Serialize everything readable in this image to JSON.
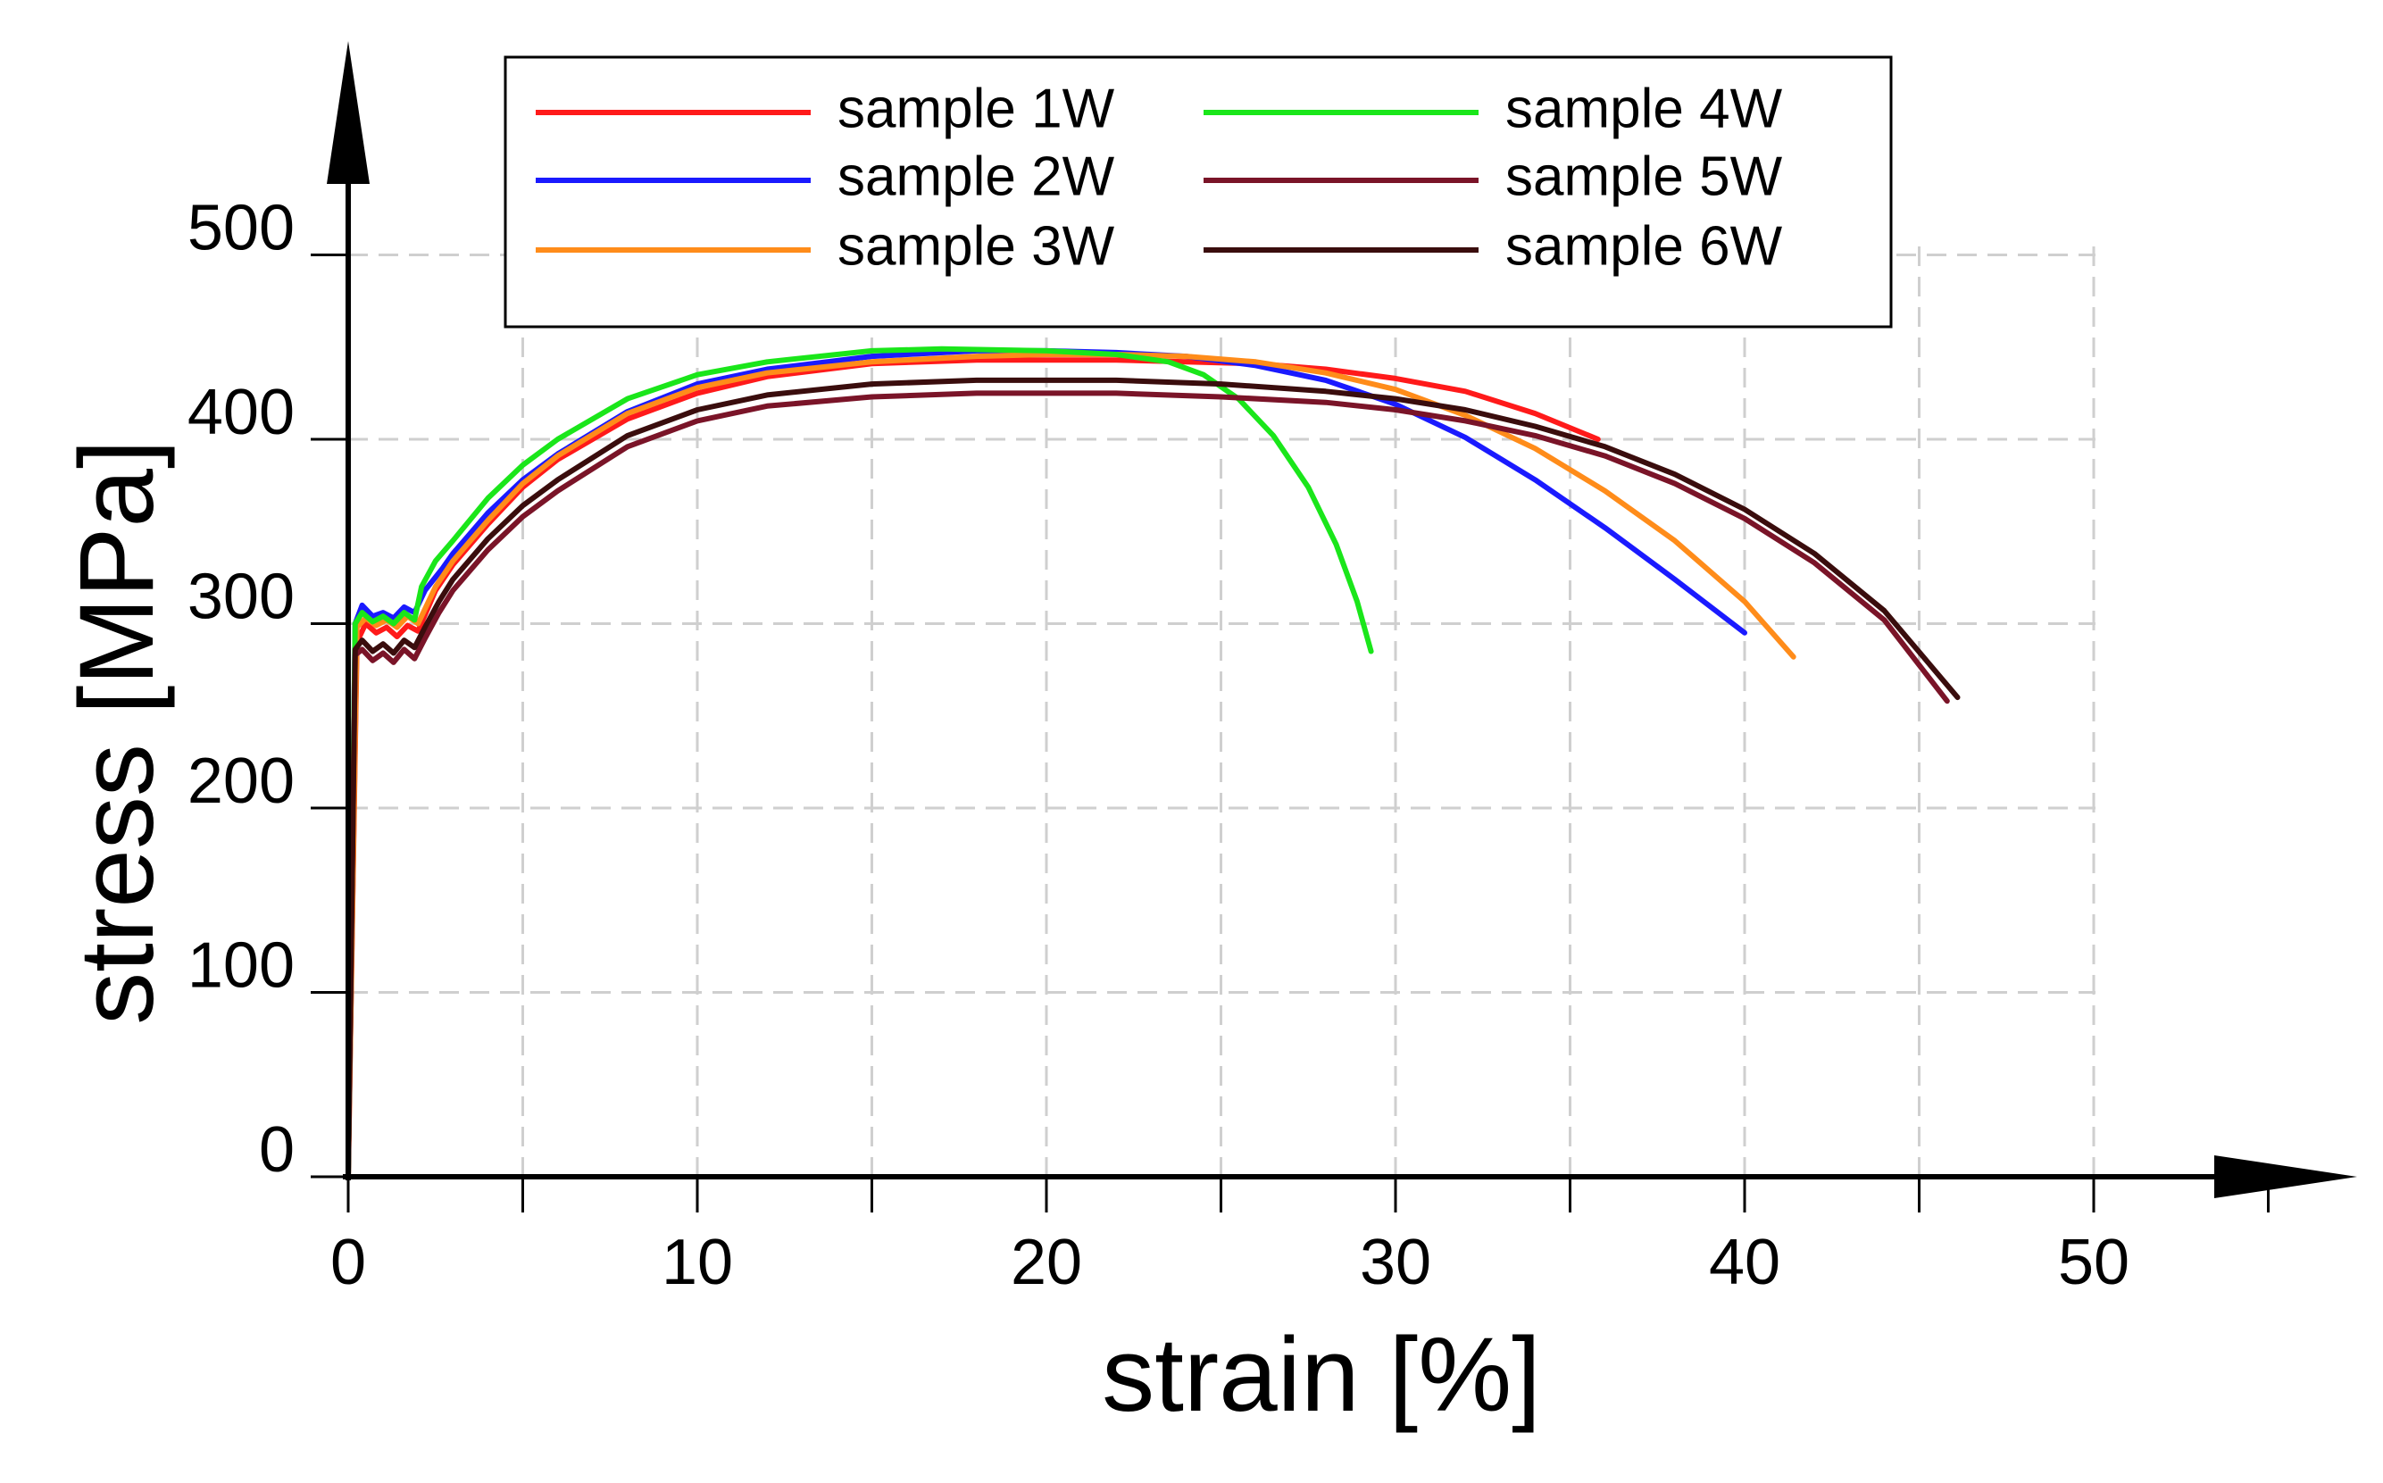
{
  "chart_data": {
    "type": "line",
    "title": "",
    "xlabel": "strain [%]",
    "ylabel": "stress [MPa]",
    "xlim": [
      0,
      55
    ],
    "ylim": [
      0,
      560
    ],
    "xticks": [
      0,
      10,
      20,
      30,
      40,
      50
    ],
    "yticks": [
      0,
      100,
      200,
      300,
      400,
      500
    ],
    "grid": true,
    "legend_position": "top-center",
    "series": [
      {
        "name": "sample 1W",
        "color": "#ff1a1a",
        "x": [
          0,
          0.25,
          0.5,
          0.8,
          1.1,
          1.4,
          1.7,
          2.0,
          2.5,
          3,
          4,
          5,
          6,
          8,
          10,
          12,
          15,
          18,
          20,
          22,
          24,
          26,
          28,
          30,
          32,
          34,
          35.8
        ],
        "y": [
          0,
          290,
          300,
          295,
          298,
          293,
          299,
          296,
          318,
          332,
          354,
          374,
          389,
          411,
          425,
          434,
          441,
          443,
          443,
          443,
          442,
          441,
          438,
          433,
          426,
          414,
          400
        ]
      },
      {
        "name": "sample 2W",
        "color": "#1a1aff",
        "x": [
          0,
          0.2,
          0.4,
          0.7,
          1.0,
          1.3,
          1.6,
          1.9,
          2.2,
          2.7,
          3,
          4,
          5,
          6,
          8,
          10,
          12,
          15,
          18,
          20,
          22,
          24,
          26,
          28,
          30,
          32,
          34,
          36,
          38,
          40
        ],
        "y": [
          0,
          300,
          310,
          304,
          306,
          303,
          309,
          306,
          318,
          330,
          338,
          360,
          378,
          392,
          415,
          430,
          438,
          445,
          448,
          448,
          447,
          445,
          440,
          432,
          419,
          401,
          378,
          352,
          324,
          295
        ]
      },
      {
        "name": "sample 3W",
        "color": "#ff8c1a",
        "x": [
          0,
          0.25,
          0.5,
          0.8,
          1.1,
          1.4,
          1.7,
          2.0,
          2.5,
          3,
          4,
          5,
          6,
          8,
          10,
          12,
          15,
          18,
          20,
          22,
          24,
          26,
          28,
          30,
          32,
          34,
          36,
          38,
          40,
          41.4
        ],
        "y": [
          0,
          298,
          303,
          299,
          302,
          298,
          304,
          300,
          320,
          334,
          356,
          376,
          391,
          414,
          428,
          436,
          442,
          445,
          446,
          446,
          445,
          442,
          436,
          427,
          413,
          395,
          372,
          345,
          312,
          282
        ]
      },
      {
        "name": "sample 4W",
        "color": "#1ae61a",
        "x": [
          0,
          0.2,
          0.4,
          0.7,
          1.0,
          1.3,
          1.6,
          1.9,
          2.1,
          2.5,
          3,
          4,
          5,
          6,
          8,
          10,
          12,
          15,
          17,
          20,
          22,
          23.5,
          24.5,
          25.5,
          26.5,
          27.5,
          28.3,
          28.9,
          29.3
        ],
        "y": [
          0,
          300,
          306,
          301,
          304,
          300,
          306,
          302,
          320,
          334,
          345,
          368,
          386,
          400,
          422,
          435,
          442,
          448,
          449,
          448,
          446,
          442,
          435,
          422,
          402,
          374,
          343,
          312,
          285
        ]
      },
      {
        "name": "sample 5W",
        "color": "#7a1428",
        "x": [
          0,
          0.2,
          0.4,
          0.7,
          1.0,
          1.3,
          1.6,
          1.9,
          2.2,
          2.6,
          3,
          4,
          5,
          6,
          8,
          10,
          12,
          15,
          18,
          20,
          22,
          25,
          28,
          30,
          32,
          34,
          36,
          38,
          40,
          42,
          44,
          45.8
        ],
        "y": [
          0,
          283,
          286,
          280,
          284,
          279,
          286,
          281,
          292,
          306,
          318,
          340,
          358,
          372,
          396,
          410,
          418,
          423,
          425,
          425,
          425,
          423,
          420,
          416,
          410,
          402,
          391,
          376,
          357,
          333,
          302,
          258
        ]
      },
      {
        "name": "sample 6W",
        "color": "#3a0d0d",
        "x": [
          0,
          0.2,
          0.4,
          0.7,
          1.0,
          1.3,
          1.6,
          1.9,
          2.2,
          2.6,
          3,
          4,
          5,
          6,
          8,
          10,
          12,
          15,
          18,
          20,
          22,
          25,
          28,
          30,
          32,
          34,
          36,
          38,
          40,
          42,
          44,
          46.1
        ],
        "y": [
          0,
          286,
          291,
          285,
          289,
          284,
          291,
          287,
          298,
          312,
          324,
          346,
          364,
          378,
          402,
          416,
          424,
          430,
          432,
          432,
          432,
          430,
          426,
          422,
          416,
          407,
          396,
          381,
          362,
          338,
          307,
          260
        ]
      }
    ]
  }
}
